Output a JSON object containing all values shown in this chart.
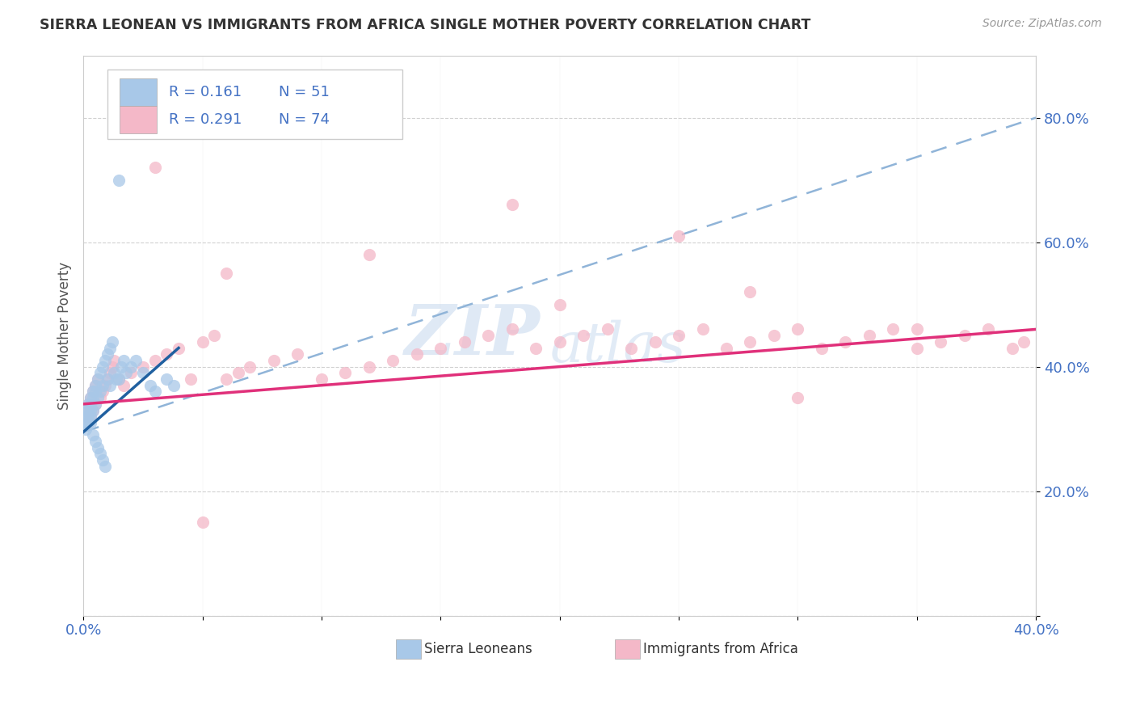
{
  "title": "SIERRA LEONEAN VS IMMIGRANTS FROM AFRICA SINGLE MOTHER POVERTY CORRELATION CHART",
  "source": "Source: ZipAtlas.com",
  "ylabel": "Single Mother Poverty",
  "xlim": [
    0.0,
    0.4
  ],
  "ylim": [
    0.0,
    0.9
  ],
  "xticks": [
    0.0,
    0.05,
    0.1,
    0.15,
    0.2,
    0.25,
    0.3,
    0.35,
    0.4
  ],
  "yticks": [
    0.0,
    0.2,
    0.4,
    0.6,
    0.8
  ],
  "xticklabels": [
    "0.0%",
    "",
    "",
    "",
    "",
    "",
    "",
    "",
    "40.0%"
  ],
  "yticklabels": [
    "",
    "20.0%",
    "40.0%",
    "60.0%",
    "80.0%"
  ],
  "legend_r1": "R = 0.161",
  "legend_n1": "N = 51",
  "legend_r2": "R = 0.291",
  "legend_n2": "N = 74",
  "color_blue": "#a8c8e8",
  "color_pink": "#f4b8c8",
  "color_blue_line": "#2060a0",
  "color_pink_line": "#e0307a",
  "color_dashed": "#90b4d8",
  "watermark_zip": "ZIP",
  "watermark_atlas": "atlas",
  "legend_label1": "Sierra Leoneans",
  "legend_label2": "Immigrants from Africa",
  "sierra_x": [
    0.001,
    0.001,
    0.001,
    0.001,
    0.002,
    0.002,
    0.002,
    0.002,
    0.003,
    0.003,
    0.003,
    0.003,
    0.003,
    0.004,
    0.004,
    0.004,
    0.004,
    0.005,
    0.005,
    0.005,
    0.005,
    0.006,
    0.006,
    0.006,
    0.007,
    0.007,
    0.007,
    0.008,
    0.008,
    0.008,
    0.009,
    0.009,
    0.01,
    0.01,
    0.011,
    0.011,
    0.012,
    0.013,
    0.014,
    0.015,
    0.016,
    0.017,
    0.018,
    0.02,
    0.022,
    0.025,
    0.028,
    0.03,
    0.035,
    0.038,
    0.015
  ],
  "sierra_y": [
    0.33,
    0.32,
    0.31,
    0.3,
    0.34,
    0.33,
    0.32,
    0.31,
    0.35,
    0.34,
    0.33,
    0.32,
    0.31,
    0.36,
    0.35,
    0.33,
    0.29,
    0.37,
    0.36,
    0.34,
    0.28,
    0.38,
    0.35,
    0.27,
    0.39,
    0.36,
    0.26,
    0.4,
    0.37,
    0.25,
    0.41,
    0.24,
    0.42,
    0.38,
    0.43,
    0.37,
    0.44,
    0.39,
    0.38,
    0.38,
    0.4,
    0.41,
    0.39,
    0.4,
    0.41,
    0.39,
    0.37,
    0.36,
    0.38,
    0.37,
    0.7
  ],
  "africa_x": [
    0.001,
    0.001,
    0.002,
    0.002,
    0.003,
    0.003,
    0.004,
    0.004,
    0.005,
    0.005,
    0.006,
    0.007,
    0.008,
    0.009,
    0.01,
    0.011,
    0.012,
    0.013,
    0.015,
    0.017,
    0.02,
    0.025,
    0.03,
    0.035,
    0.04,
    0.045,
    0.05,
    0.055,
    0.06,
    0.065,
    0.07,
    0.08,
    0.09,
    0.1,
    0.11,
    0.12,
    0.13,
    0.14,
    0.15,
    0.16,
    0.17,
    0.18,
    0.19,
    0.2,
    0.21,
    0.22,
    0.23,
    0.24,
    0.25,
    0.26,
    0.27,
    0.28,
    0.29,
    0.3,
    0.31,
    0.32,
    0.33,
    0.34,
    0.35,
    0.36,
    0.37,
    0.38,
    0.39,
    0.395,
    0.12,
    0.18,
    0.25,
    0.2,
    0.28,
    0.3,
    0.35,
    0.06,
    0.03,
    0.05
  ],
  "africa_y": [
    0.33,
    0.32,
    0.34,
    0.31,
    0.35,
    0.32,
    0.36,
    0.33,
    0.37,
    0.34,
    0.38,
    0.35,
    0.36,
    0.37,
    0.38,
    0.39,
    0.4,
    0.41,
    0.38,
    0.37,
    0.39,
    0.4,
    0.41,
    0.42,
    0.43,
    0.38,
    0.44,
    0.45,
    0.38,
    0.39,
    0.4,
    0.41,
    0.42,
    0.38,
    0.39,
    0.4,
    0.41,
    0.42,
    0.43,
    0.44,
    0.45,
    0.46,
    0.43,
    0.44,
    0.45,
    0.46,
    0.43,
    0.44,
    0.45,
    0.46,
    0.43,
    0.44,
    0.45,
    0.46,
    0.43,
    0.44,
    0.45,
    0.46,
    0.43,
    0.44,
    0.45,
    0.46,
    0.43,
    0.44,
    0.58,
    0.66,
    0.61,
    0.5,
    0.52,
    0.35,
    0.46,
    0.55,
    0.72,
    0.15
  ],
  "blue_line_x": [
    0.0,
    0.04
  ],
  "blue_line_y": [
    0.295,
    0.43
  ],
  "pink_line_x": [
    0.0,
    0.4
  ],
  "pink_line_y": [
    0.34,
    0.46
  ],
  "dashed_line_x": [
    0.0,
    0.4
  ],
  "dashed_line_y": [
    0.295,
    0.8
  ]
}
